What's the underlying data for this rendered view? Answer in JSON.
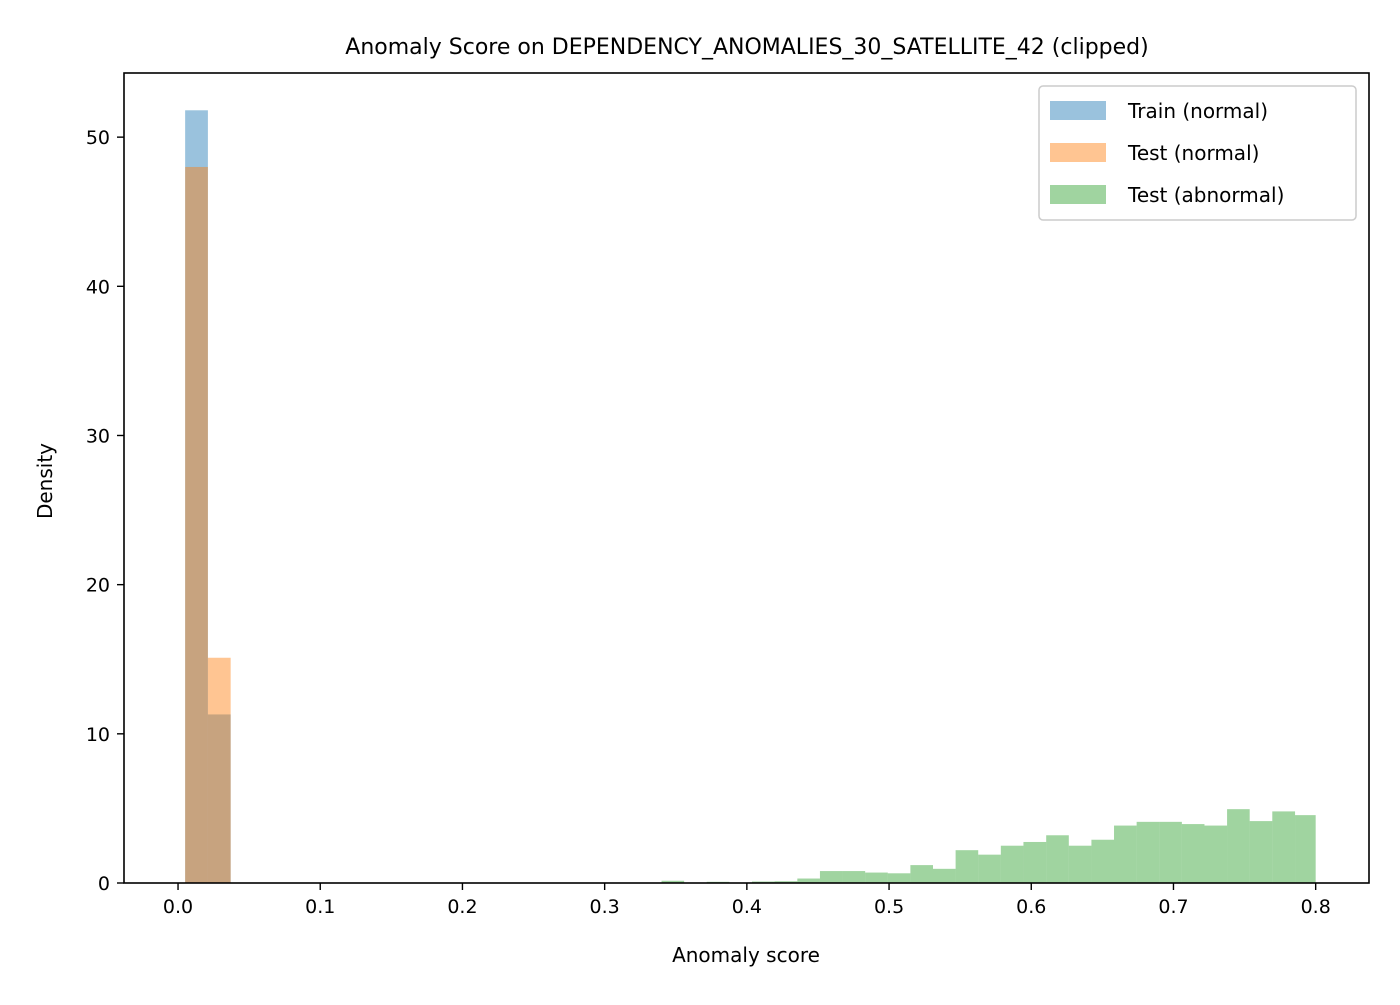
{
  "chart_data": {
    "type": "bar",
    "title": "Anomaly Score on DEPENDENCY_ANOMALIES_30_SATELLITE_42 (clipped)",
    "xlabel": "Anomaly score",
    "ylabel": "Density",
    "xlim": [
      -0.038,
      0.8375
    ],
    "ylim": [
      0,
      54.3
    ],
    "xticks": [
      "0.0",
      "0.1",
      "0.2",
      "0.3",
      "0.4",
      "0.5",
      "0.6",
      "0.7",
      "0.8"
    ],
    "yticks": [
      "0",
      "10",
      "20",
      "30",
      "40",
      "50"
    ],
    "grid": false,
    "legend_position": "top-right",
    "series": [
      {
        "name": "Train (normal)",
        "color": "#1f77b4",
        "opacity": 0.45,
        "bins": [
          {
            "x0": 0.005,
            "x1": 0.021,
            "y": 51.8
          },
          {
            "x0": 0.021,
            "x1": 0.037,
            "y": 11.3
          }
        ]
      },
      {
        "name": "Test (normal)",
        "color": "#ff7f0e",
        "opacity": 0.45,
        "bins": [
          {
            "x0": 0.005,
            "x1": 0.021,
            "y": 48.0
          },
          {
            "x0": 0.021,
            "x1": 0.037,
            "y": 15.1
          }
        ]
      },
      {
        "name": "Test (abnormal)",
        "color": "#2ca02c",
        "opacity": 0.45,
        "bins": [
          {
            "x0": 0.34,
            "x1": 0.3559,
            "y": 0.15
          },
          {
            "x0": 0.3718,
            "x1": 0.3877,
            "y": 0.08
          },
          {
            "x0": 0.4036,
            "x1": 0.4195,
            "y": 0.1
          },
          {
            "x0": 0.4195,
            "x1": 0.4355,
            "y": 0.12
          },
          {
            "x0": 0.4355,
            "x1": 0.4514,
            "y": 0.3
          },
          {
            "x0": 0.4514,
            "x1": 0.4673,
            "y": 0.8
          },
          {
            "x0": 0.4673,
            "x1": 0.4832,
            "y": 0.8
          },
          {
            "x0": 0.4832,
            "x1": 0.4991,
            "y": 0.7
          },
          {
            "x0": 0.4991,
            "x1": 0.515,
            "y": 0.65
          },
          {
            "x0": 0.515,
            "x1": 0.5309,
            "y": 1.2
          },
          {
            "x0": 0.5309,
            "x1": 0.5468,
            "y": 0.95
          },
          {
            "x0": 0.5468,
            "x1": 0.5627,
            "y": 2.2
          },
          {
            "x0": 0.5627,
            "x1": 0.5786,
            "y": 1.9
          },
          {
            "x0": 0.5786,
            "x1": 0.5945,
            "y": 2.5
          },
          {
            "x0": 0.5945,
            "x1": 0.6105,
            "y": 2.75
          },
          {
            "x0": 0.6105,
            "x1": 0.6264,
            "y": 3.2
          },
          {
            "x0": 0.6264,
            "x1": 0.6423,
            "y": 2.5
          },
          {
            "x0": 0.6423,
            "x1": 0.6582,
            "y": 2.9
          },
          {
            "x0": 0.6582,
            "x1": 0.6741,
            "y": 3.85
          },
          {
            "x0": 0.6741,
            "x1": 0.69,
            "y": 4.1
          },
          {
            "x0": 0.69,
            "x1": 0.7059,
            "y": 4.1
          },
          {
            "x0": 0.7059,
            "x1": 0.7218,
            "y": 3.95
          },
          {
            "x0": 0.7218,
            "x1": 0.7377,
            "y": 3.85
          },
          {
            "x0": 0.7377,
            "x1": 0.7536,
            "y": 4.95
          },
          {
            "x0": 0.7536,
            "x1": 0.7695,
            "y": 4.15
          },
          {
            "x0": 0.7695,
            "x1": 0.7855,
            "y": 4.8
          },
          {
            "x0": 0.7855,
            "x1": 0.8,
            "y": 4.55
          }
        ]
      }
    ]
  }
}
